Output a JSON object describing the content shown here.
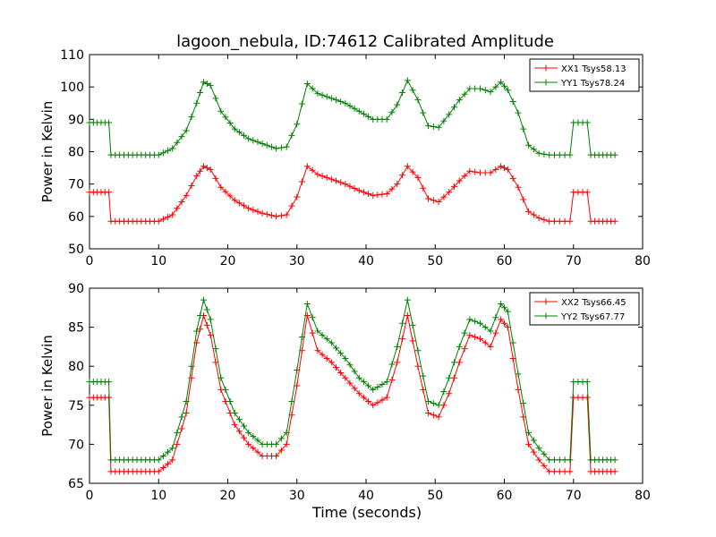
{
  "chart_data": [
    {
      "type": "line",
      "title": "lagoon_nebula, ID:74612 Calibrated Amplitude",
      "xlabel": "",
      "ylabel": "Power in Kelvin",
      "xlim": [
        0,
        80
      ],
      "ylim": [
        50,
        110
      ],
      "xticks": [
        "0",
        "10",
        "20",
        "30",
        "40",
        "50",
        "60",
        "70",
        "80"
      ],
      "yticks": [
        "50",
        "60",
        "70",
        "80",
        "90",
        "100",
        "110"
      ],
      "grid": false,
      "legend_position": "top-right",
      "x": [
        0,
        2.8,
        3.1,
        10,
        12,
        14,
        15.5,
        16.5,
        17.5,
        19,
        21,
        23,
        25,
        27,
        28.5,
        30,
        31.5,
        33,
        35,
        37,
        39,
        41,
        43,
        44.5,
        46,
        47.5,
        49,
        50.5,
        52,
        53.5,
        55,
        56.5,
        58,
        59.5,
        60.5,
        62,
        63.5,
        65,
        66.5,
        68,
        69.5,
        70,
        72,
        72.5,
        76
      ],
      "series": [
        {
          "name": "XX1 Tsys58.13",
          "color": "#ff0000",
          "values": [
            67.5,
            67.5,
            58.5,
            58.5,
            60.5,
            66.5,
            72.5,
            75.5,
            74.5,
            69,
            65,
            62.5,
            61,
            60,
            60.5,
            66,
            75.5,
            73,
            71.5,
            70,
            68,
            66.5,
            67,
            70,
            75.5,
            72,
            65.5,
            64.5,
            67.5,
            71,
            74,
            73.5,
            73.5,
            75.5,
            74.5,
            69,
            61.5,
            59.5,
            58.5,
            58.5,
            58.5,
            67.5,
            67.5,
            58.5,
            58.5
          ]
        },
        {
          "name": "YY1 Tsys78.24",
          "color": "#008000",
          "values": [
            89,
            89,
            79,
            79,
            81,
            86.5,
            95,
            101.5,
            100.5,
            92.5,
            87,
            84,
            82.5,
            81,
            81.5,
            88.5,
            101,
            98,
            96.5,
            95,
            92.5,
            90,
            90,
            94.5,
            102,
            96,
            88,
            87.5,
            91.5,
            96,
            99.5,
            99.5,
            98.5,
            101.5,
            99,
            92,
            82,
            79.5,
            79,
            79,
            79,
            89,
            89,
            79,
            79
          ]
        }
      ]
    },
    {
      "type": "line",
      "title": "",
      "xlabel": "Time (seconds)",
      "ylabel": "Power in Kelvin",
      "xlim": [
        0,
        80
      ],
      "ylim": [
        65,
        90
      ],
      "xticks": [
        "0",
        "10",
        "20",
        "30",
        "40",
        "50",
        "60",
        "70",
        "80"
      ],
      "yticks": [
        "65",
        "70",
        "75",
        "80",
        "85",
        "90"
      ],
      "grid": false,
      "legend_position": "top-right",
      "x": [
        0,
        2.8,
        3.1,
        10,
        12,
        14,
        15.5,
        16.5,
        17.5,
        19,
        21,
        23,
        25,
        27,
        28.5,
        30,
        31.5,
        33,
        35,
        37,
        39,
        41,
        43,
        44.5,
        46,
        47.5,
        49,
        50.5,
        52,
        53.5,
        55,
        56.5,
        58,
        59.5,
        60.5,
        62,
        63.5,
        65,
        66.5,
        68,
        69.5,
        70,
        72,
        72.5,
        76
      ],
      "series": [
        {
          "name": "XX2 Tsys66.45",
          "color": "#ff0000",
          "values": [
            76,
            76,
            66.5,
            66.5,
            68,
            74,
            83,
            86.5,
            84,
            77,
            72.5,
            70,
            68.5,
            68.5,
            70,
            77.5,
            86.5,
            82,
            80.5,
            78.5,
            76.5,
            75,
            76,
            80.5,
            86.5,
            80,
            74,
            73.5,
            76.5,
            80.5,
            84,
            83.5,
            82.5,
            86,
            85,
            77,
            70,
            68,
            66.5,
            66.5,
            66.5,
            76,
            76,
            66.5,
            66.5
          ]
        },
        {
          "name": "YY2 Tsys67.77",
          "color": "#008000",
          "values": [
            78,
            78,
            68,
            68,
            69.5,
            75.5,
            84.5,
            88.5,
            86,
            78.5,
            74,
            71.5,
            70,
            70,
            71.5,
            79.5,
            88,
            84.5,
            83,
            81,
            78.5,
            77,
            78,
            82.5,
            88.5,
            82,
            75.5,
            75,
            78.5,
            82.5,
            86,
            85.5,
            84.5,
            88,
            87,
            79,
            71.5,
            69.5,
            68,
            68,
            68,
            78,
            78,
            68,
            68
          ]
        }
      ]
    }
  ]
}
